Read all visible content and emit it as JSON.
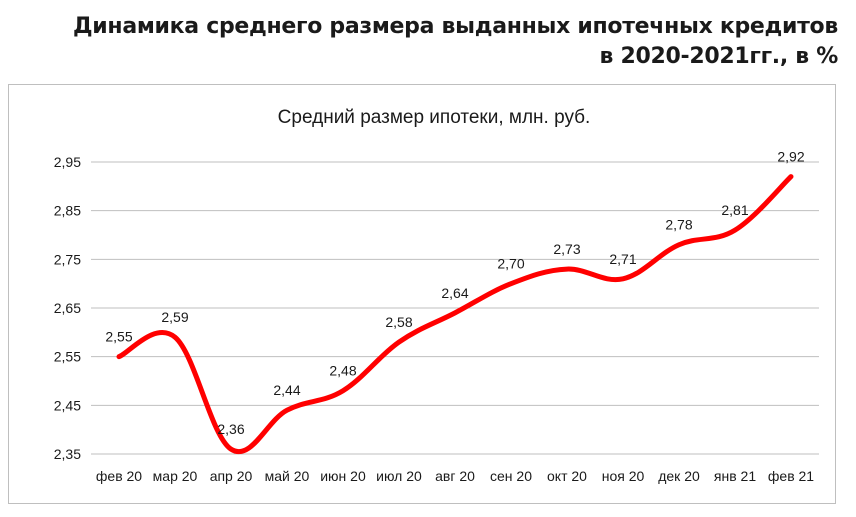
{
  "heading": {
    "line1": "Динамика среднего размера выданных ипотечных кредитов",
    "line2": "в 2020-2021гг., в %"
  },
  "chart_data": {
    "type": "line",
    "title": "Средний размер ипотеки,  млн. руб.",
    "xlabel": "",
    "ylabel": "",
    "categories": [
      "фев 20",
      "мар 20",
      "апр 20",
      "май 20",
      "июн 20",
      "июл 20",
      "авг 20",
      "сен 20",
      "окт 20",
      "ноя 20",
      "дек 20",
      "янв 21",
      "фев 21"
    ],
    "series": [
      {
        "values": [
          2.55,
          2.59,
          2.36,
          2.44,
          2.48,
          2.58,
          2.64,
          2.7,
          2.73,
          2.71,
          2.78,
          2.81,
          2.92
        ],
        "labels": [
          "2,55",
          "2,59",
          "2,36",
          "2,44",
          "2,48",
          "2,58",
          "2,64",
          "2,70",
          "2,73",
          "2,71",
          "2,78",
          "2,81",
          "2,92"
        ],
        "color": "#ff0000",
        "smooth": true
      }
    ],
    "yticks": [
      "2,35",
      "2,45",
      "2,55",
      "2,65",
      "2,75",
      "2,85",
      "2,95"
    ],
    "ytick_values": [
      2.35,
      2.45,
      2.55,
      2.65,
      2.75,
      2.85,
      2.95
    ],
    "ylim": [
      2.35,
      2.95
    ],
    "grid": true,
    "legend": "none",
    "colors": {
      "line": "#ff0000",
      "grid": "#bfbfbf",
      "text": "#1a1a1a"
    }
  }
}
